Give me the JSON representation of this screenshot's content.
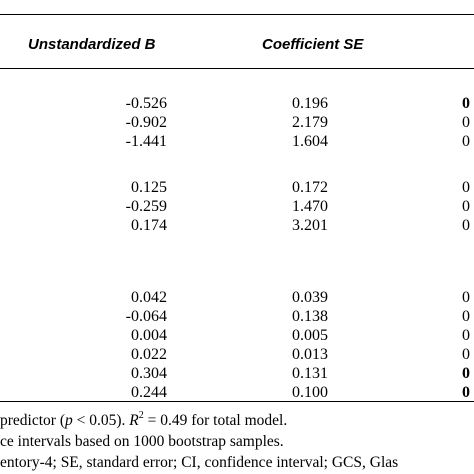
{
  "columns": {
    "b": "Unstandardized B",
    "se": "Coefficient SE"
  },
  "groups": [
    [
      {
        "b": "-0.526",
        "se": "0.196",
        "p": "0",
        "bold": true
      },
      {
        "b": "-0.902",
        "se": "2.179",
        "p": "0",
        "bold": false
      },
      {
        "b": "-1.441",
        "se": "1.604",
        "p": "0",
        "bold": false
      }
    ],
    [
      {
        "b": "0.125",
        "se": "0.172",
        "p": "0",
        "bold": false
      },
      {
        "b": "-0.259",
        "se": "1.470",
        "p": "0",
        "bold": false
      },
      {
        "b": "0.174",
        "se": "3.201",
        "p": "0",
        "bold": false
      }
    ],
    [
      {
        "b": "0.042",
        "se": "0.039",
        "p": "0",
        "bold": false
      },
      {
        "b": "-0.064",
        "se": "0.138",
        "p": "0",
        "bold": false
      },
      {
        "b": "0.004",
        "se": "0.005",
        "p": "0",
        "bold": false
      },
      {
        "b": "0.022",
        "se": "0.013",
        "p": "0",
        "bold": false
      },
      {
        "b": "0.304",
        "se": "0.131",
        "p": "0",
        "bold": true
      },
      {
        "b": "0.244",
        "se": "0.100",
        "p": "0",
        "bold": true
      }
    ]
  ],
  "notes": {
    "line1_a": "predictor (",
    "line1_p": "p",
    "line1_b": " < 0.05). ",
    "line1_r": "R",
    "line1_sup": "2",
    "line1_c": " = 0.49 for total model.",
    "line2": "ce intervals based on 1000 bootstrap samples.",
    "line3": "entory-4; SE, standard error; CI, confidence interval; GCS, Glas"
  }
}
